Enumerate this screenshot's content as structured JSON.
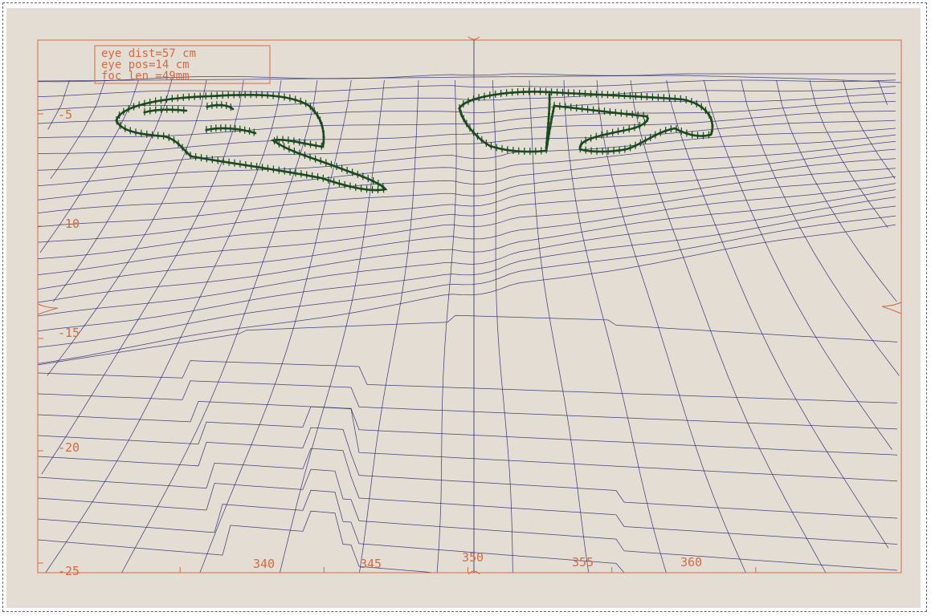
{
  "colors": {
    "paper": "#e3ddd3",
    "axis": "#d36a43",
    "grid_line": "#28286e",
    "marker": "#1c4a20"
  },
  "chart_data": {
    "type": "line",
    "description_visible": "perspective wireframe terrain surface plot with two contour outlines drawn with dot markers",
    "x_axis": {
      "range": [
        335,
        365
      ],
      "ticks": [
        340,
        345,
        350,
        355,
        360
      ]
    },
    "y_axis": {
      "range": [
        -25,
        -3
      ],
      "ticks": [
        -5,
        -10,
        -15,
        -20,
        -25
      ]
    },
    "grid": false,
    "info_box": [
      "eye dist=57 cm",
      "eye pos=14 cm",
      "foc len =49mm"
    ],
    "regions": [
      {
        "shape": "contour outline",
        "x_range": [
          338,
          345
        ],
        "y_range": [
          -5,
          -9
        ]
      },
      {
        "shape": "contour outline",
        "x_range": [
          349,
          361
        ],
        "y_range": [
          -4,
          -7
        ]
      }
    ]
  }
}
